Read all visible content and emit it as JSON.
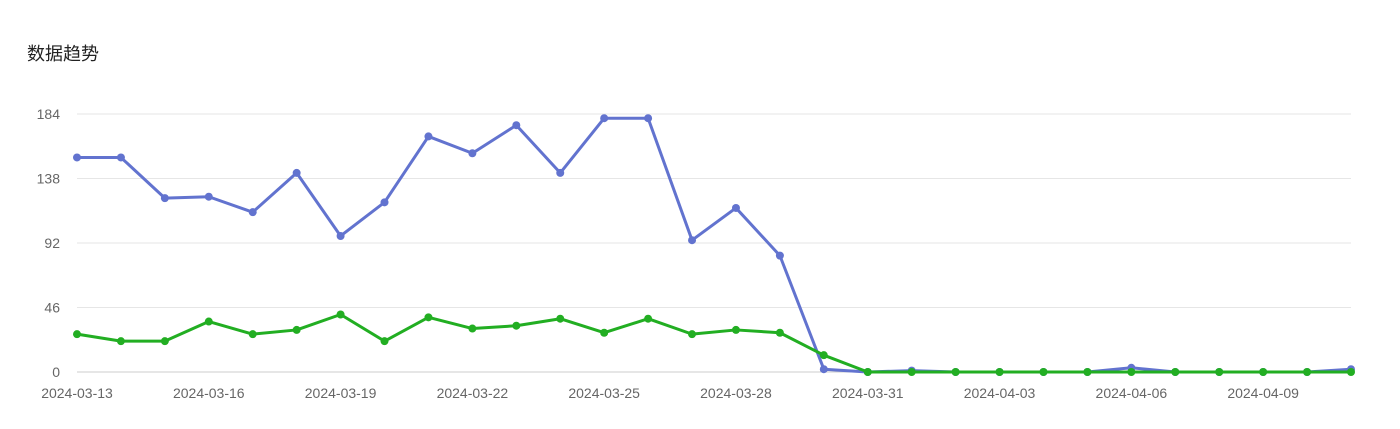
{
  "panel": {
    "title": "数据趋势"
  },
  "chart_data": {
    "type": "line",
    "title": "数据趋势",
    "x": [
      "2024-03-13",
      "2024-03-14",
      "2024-03-15",
      "2024-03-16",
      "2024-03-17",
      "2024-03-18",
      "2024-03-19",
      "2024-03-20",
      "2024-03-21",
      "2024-03-22",
      "2024-03-23",
      "2024-03-24",
      "2024-03-25",
      "2024-03-26",
      "2024-03-27",
      "2024-03-28",
      "2024-03-29",
      "2024-03-30",
      "2024-03-31",
      "2024-04-01",
      "2024-04-02",
      "2024-04-03",
      "2024-04-04",
      "2024-04-05",
      "2024-04-06",
      "2024-04-07",
      "2024-04-08",
      "2024-04-09",
      "2024-04-10",
      "2024-04-11"
    ],
    "x_tick_labels": [
      "2024-03-13",
      "2024-03-16",
      "2024-03-19",
      "2024-03-22",
      "2024-03-25",
      "2024-03-28",
      "2024-03-31",
      "2024-04-03",
      "2024-04-06",
      "2024-04-09"
    ],
    "y_ticks": [
      0,
      46,
      92,
      138,
      184
    ],
    "ylim": [
      0,
      184
    ],
    "grid": true,
    "series": [
      {
        "color": "#6273cf",
        "values": [
          153,
          153,
          124,
          125,
          114,
          142,
          97,
          121,
          168,
          156,
          176,
          142,
          181,
          181,
          94,
          117,
          83,
          2,
          0,
          1,
          0,
          0,
          0,
          0,
          3,
          0,
          0,
          0,
          0,
          2
        ]
      },
      {
        "color": "#22ae22",
        "values": [
          27,
          22,
          22,
          36,
          27,
          30,
          41,
          22,
          39,
          31,
          33,
          38,
          28,
          38,
          27,
          30,
          28,
          12,
          0,
          0,
          0,
          0,
          0,
          0,
          0,
          0,
          0,
          0,
          0,
          0
        ]
      }
    ]
  }
}
